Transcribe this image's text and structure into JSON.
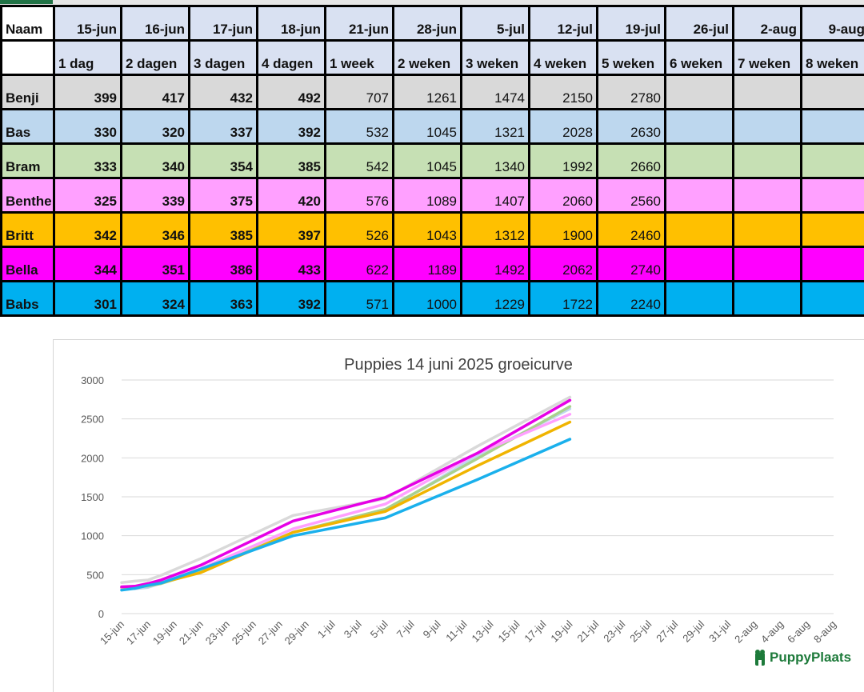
{
  "table": {
    "header_name": "Naam",
    "dates": [
      "15-jun",
      "16-jun",
      "17-jun",
      "18-jun",
      "21-jun",
      "28-jun",
      "5-jul",
      "12-jul",
      "19-jul",
      "26-jul",
      "2-aug",
      "9-aug"
    ],
    "ages": [
      "1 dag",
      "2 dagen",
      "3 dagen",
      "4 dagen",
      "1 week",
      "2 weken",
      "3 weken",
      "4 weken",
      "5 weken",
      "6 weken",
      "7 weken",
      "8 weken"
    ],
    "rows": [
      {
        "name": "Benji",
        "color": "#d9d9d9",
        "values": [
          "399",
          "417",
          "432",
          "492",
          "707",
          "1261",
          "1474",
          "2150",
          "2780",
          "",
          "",
          ""
        ]
      },
      {
        "name": "Bas",
        "color": "#bdd7ee",
        "values": [
          "330",
          "320",
          "337",
          "392",
          "532",
          "1045",
          "1321",
          "2028",
          "2630",
          "",
          "",
          ""
        ]
      },
      {
        "name": "Bram",
        "color": "#c6e0b4",
        "values": [
          "333",
          "340",
          "354",
          "385",
          "542",
          "1045",
          "1340",
          "1992",
          "2660",
          "",
          "",
          ""
        ]
      },
      {
        "name": "Benthe",
        "color": "#ffa0ff",
        "values": [
          "325",
          "339",
          "375",
          "420",
          "576",
          "1089",
          "1407",
          "2060",
          "2560",
          "",
          "",
          ""
        ]
      },
      {
        "name": "Britt",
        "color": "#ffc000",
        "values": [
          "342",
          "346",
          "385",
          "397",
          "526",
          "1043",
          "1312",
          "1900",
          "2460",
          "",
          "",
          ""
        ]
      },
      {
        "name": "Bella",
        "color": "#ff00ff",
        "values": [
          "344",
          "351",
          "386",
          "433",
          "622",
          "1189",
          "1492",
          "2062",
          "2740",
          "",
          "",
          ""
        ]
      },
      {
        "name": "Babs",
        "color": "#00b0f0",
        "values": [
          "301",
          "324",
          "363",
          "392",
          "571",
          "1000",
          "1229",
          "1722",
          "2240",
          "",
          "",
          ""
        ]
      }
    ],
    "header_bg": "#d9e1f2"
  },
  "chart_data": {
    "type": "line",
    "title": "Puppies 14 juni 2025 groeicurve",
    "xlabel": "",
    "ylabel": "",
    "ylim": [
      0,
      3000
    ],
    "yticks": [
      "0",
      "500",
      "1000",
      "1500",
      "2000",
      "2500",
      "3000"
    ],
    "xticks": [
      "15-jun",
      "17-jun",
      "19-jun",
      "21-jun",
      "23-jun",
      "25-jun",
      "27-jun",
      "29-jun",
      "1-jul",
      "3-jul",
      "5-jul",
      "7-jul",
      "9-jul",
      "11-jul",
      "13-jul",
      "15-jul",
      "17-jul",
      "19-jul",
      "21-jul",
      "23-jul",
      "25-jul",
      "27-jul",
      "29-jul",
      "31-jul",
      "2-aug",
      "4-aug",
      "6-aug",
      "8-aug"
    ],
    "x": [
      "15-jun",
      "16-jun",
      "17-jun",
      "18-jun",
      "21-jun",
      "28-jun",
      "5-jul",
      "12-jul",
      "19-jul"
    ],
    "grid": true,
    "series": [
      {
        "color": "#d9d9d9",
        "values": [
          399,
          417,
          432,
          492,
          707,
          1261,
          1474,
          2150,
          2780
        ]
      },
      {
        "color": "#bdd7ee",
        "values": [
          330,
          320,
          337,
          392,
          532,
          1045,
          1321,
          2028,
          2630
        ]
      },
      {
        "color": "#a9d18e",
        "values": [
          333,
          340,
          354,
          385,
          542,
          1045,
          1340,
          1992,
          2660
        ]
      },
      {
        "color": "#ffa0ff",
        "values": [
          325,
          339,
          375,
          420,
          576,
          1089,
          1407,
          2060,
          2560
        ]
      },
      {
        "color": "#f0b400",
        "values": [
          342,
          346,
          385,
          397,
          526,
          1043,
          1312,
          1900,
          2460
        ]
      },
      {
        "color": "#e600e6",
        "values": [
          344,
          351,
          386,
          433,
          622,
          1189,
          1492,
          2062,
          2740
        ]
      },
      {
        "color": "#1ab0ec",
        "values": [
          301,
          324,
          363,
          392,
          571,
          1000,
          1229,
          1722,
          2240
        ]
      }
    ]
  },
  "logo": {
    "text": "PuppyPlaats",
    "color": "#1d7a3a"
  }
}
